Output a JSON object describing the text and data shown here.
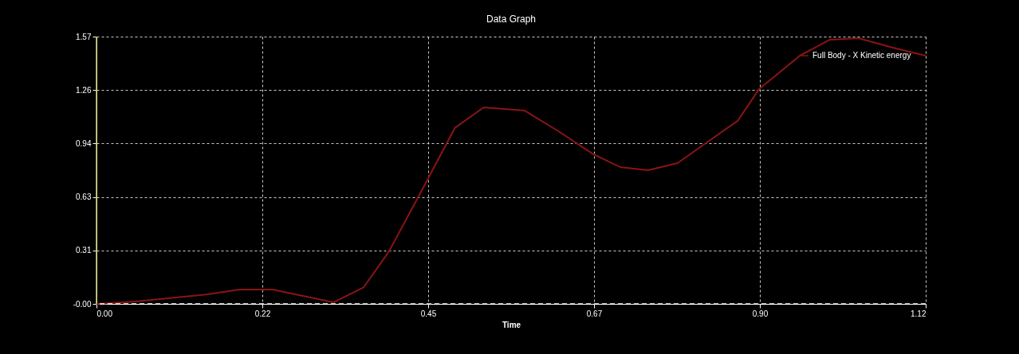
{
  "chart_data": {
    "type": "line",
    "title": "Data Graph",
    "xlabel": "Time",
    "x": [
      0,
      0.053,
      0.096,
      0.15,
      0.193,
      0.238,
      0.32,
      0.361,
      0.395,
      0.435,
      0.484,
      0.523,
      0.578,
      0.624,
      0.671,
      0.707,
      0.745,
      0.785,
      0.826,
      0.866,
      0.895,
      0.95,
      0.99,
      1.029,
      1.076,
      1.12
    ],
    "series": [
      {
        "name": "Full Body - X Kinetic energy",
        "color": "#8b1414",
        "values": [
          0,
          0.014,
          0.033,
          0.056,
          0.084,
          0.084,
          0.009,
          0.098,
          0.308,
          0.631,
          1.033,
          1.154,
          1.136,
          1.014,
          0.879,
          0.804,
          0.785,
          0.827,
          0.953,
          1.075,
          1.262,
          1.458,
          1.551,
          1.561,
          1.505,
          1.458
        ]
      }
    ],
    "xlim": [
      0,
      1.12
    ],
    "ylim": [
      0,
      1.57
    ],
    "xticks": [
      {
        "value": 0,
        "label": "0.00"
      },
      {
        "value": 0.224,
        "label": "0.22"
      },
      {
        "value": 0.448,
        "label": "0.45"
      },
      {
        "value": 0.672,
        "label": "0.67"
      },
      {
        "value": 0.896,
        "label": "0.90"
      },
      {
        "value": 1.12,
        "label": "1.12"
      }
    ],
    "yticks": [
      {
        "value": 0,
        "label": "-0.00"
      },
      {
        "value": 0.314,
        "label": "0.31"
      },
      {
        "value": 0.628,
        "label": "0.63"
      },
      {
        "value": 0.942,
        "label": "0.94"
      },
      {
        "value": 1.256,
        "label": "1.26"
      },
      {
        "value": 1.57,
        "label": "1.57"
      }
    ],
    "ref_lines": [
      {
        "axis": "y",
        "value": 0,
        "color": "#ffffff",
        "line_style": "dashed"
      },
      {
        "axis": "x",
        "value": 0,
        "color": "#d2d26e",
        "line_style": "solid"
      }
    ],
    "grid": true,
    "legend": "top right",
    "line_style": "solid"
  }
}
